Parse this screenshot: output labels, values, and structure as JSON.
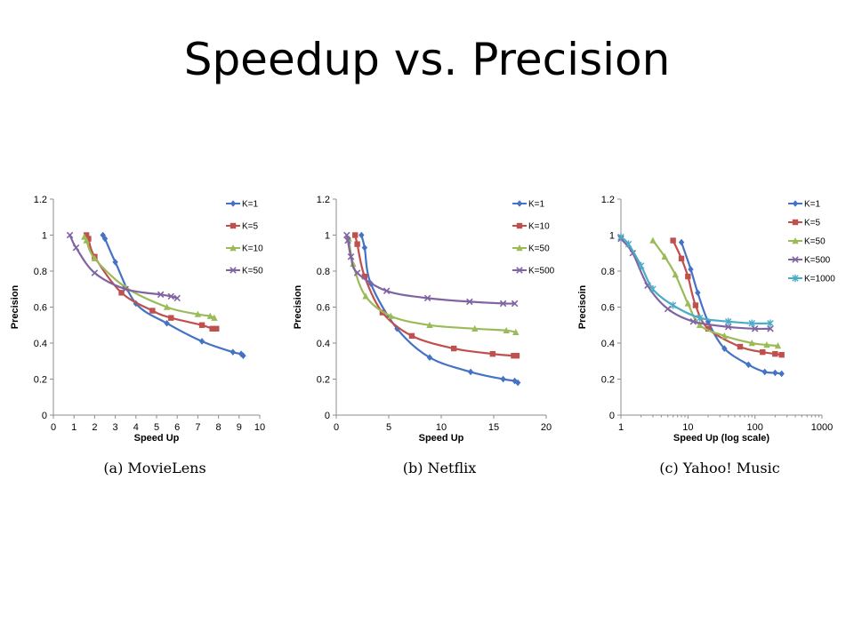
{
  "slide": {
    "title": "Speedup vs. Precision"
  },
  "chart_data": [
    {
      "type": "line",
      "title": "",
      "caption": "(a) MovieLens",
      "xlabel": "Speed Up",
      "ylabel": "Precision",
      "xscale": "linear",
      "xlim": [
        0,
        10
      ],
      "ylim": [
        0,
        1.2
      ],
      "xticks": [
        0,
        1,
        2,
        3,
        4,
        5,
        6,
        7,
        8,
        9,
        10
      ],
      "xtick_labels": [
        "0",
        "1",
        "2",
        "3",
        "4",
        "5",
        "6",
        "7",
        "8",
        "9",
        "10"
      ],
      "yticks": [
        0,
        0.2,
        0.4,
        0.6,
        0.8,
        1,
        1.2
      ],
      "ytick_labels": [
        "0",
        "0.2",
        "0.4",
        "0.6",
        "0.8",
        "1",
        "1.2"
      ],
      "legend_position": "top-right",
      "series": [
        {
          "name": "K=1",
          "color": "#4472C4",
          "marker": "diamond",
          "x": [
            2.4,
            2.5,
            3.0,
            4.0,
            5.5,
            7.2,
            8.7,
            9.1,
            9.2
          ],
          "y": [
            1.0,
            0.98,
            0.85,
            0.62,
            0.51,
            0.41,
            0.35,
            0.34,
            0.33
          ]
        },
        {
          "name": "K=5",
          "color": "#C0504D",
          "marker": "square",
          "x": [
            1.6,
            1.7,
            2.0,
            3.3,
            4.8,
            5.7,
            7.2,
            7.7,
            7.9
          ],
          "y": [
            1.0,
            0.98,
            0.88,
            0.68,
            0.58,
            0.54,
            0.5,
            0.48,
            0.48
          ]
        },
        {
          "name": "K=10",
          "color": "#9BBB59",
          "marker": "triangle",
          "x": [
            1.5,
            1.6,
            2.0,
            3.5,
            5.5,
            7.0,
            7.6,
            7.8
          ],
          "y": [
            0.99,
            0.97,
            0.87,
            0.71,
            0.6,
            0.56,
            0.55,
            0.54
          ]
        },
        {
          "name": "K=50",
          "color": "#8064A2",
          "marker": "x",
          "x": [
            0.8,
            1.1,
            2.0,
            3.5,
            5.2,
            5.7,
            6.0
          ],
          "y": [
            1.0,
            0.93,
            0.79,
            0.7,
            0.67,
            0.66,
            0.65
          ]
        }
      ]
    },
    {
      "type": "line",
      "title": "",
      "caption": "(b) Netflix",
      "xlabel": "Speed Up",
      "ylabel": "Precision",
      "xscale": "linear",
      "xlim": [
        0,
        20
      ],
      "ylim": [
        0,
        1.2
      ],
      "xticks": [
        0,
        5,
        10,
        15,
        20
      ],
      "xtick_labels": [
        "0",
        "5",
        "10",
        "15",
        "20"
      ],
      "yticks": [
        0,
        0.2,
        0.4,
        0.6,
        0.8,
        1,
        1.2
      ],
      "ytick_labels": [
        "0",
        "0.2",
        "0.4",
        "0.6",
        "0.8",
        "1",
        "1.2"
      ],
      "legend_position": "top-right",
      "series": [
        {
          "name": "K=1",
          "color": "#4472C4",
          "marker": "diamond",
          "x": [
            2.4,
            2.7,
            3.3,
            5.8,
            8.9,
            12.8,
            15.9,
            17.0,
            17.3
          ],
          "y": [
            1.0,
            0.93,
            0.73,
            0.48,
            0.32,
            0.24,
            0.2,
            0.19,
            0.18
          ]
        },
        {
          "name": "K=10",
          "color": "#C0504D",
          "marker": "square",
          "x": [
            1.8,
            2.0,
            2.7,
            4.4,
            7.2,
            11.2,
            14.9,
            16.9,
            17.2
          ],
          "y": [
            1.0,
            0.95,
            0.77,
            0.57,
            0.44,
            0.37,
            0.34,
            0.33,
            0.33
          ]
        },
        {
          "name": "K=50",
          "color": "#9BBB59",
          "marker": "triangle",
          "x": [
            1.2,
            1.6,
            2.8,
            5.2,
            8.9,
            13.2,
            16.2,
            17.1
          ],
          "y": [
            0.98,
            0.84,
            0.66,
            0.55,
            0.5,
            0.48,
            0.47,
            0.46
          ]
        },
        {
          "name": "K=500",
          "color": "#8064A2",
          "marker": "x",
          "x": [
            1.0,
            1.1,
            1.4,
            2.0,
            4.8,
            8.7,
            12.7,
            15.9,
            17.0
          ],
          "y": [
            1.0,
            0.97,
            0.88,
            0.79,
            0.69,
            0.65,
            0.63,
            0.62,
            0.62
          ]
        }
      ]
    },
    {
      "type": "line",
      "title": "",
      "caption": "(c) Yahoo! Music",
      "xlabel": "Speed Up (log scale)",
      "ylabel": "Precisoin",
      "xscale": "log",
      "xlim": [
        1,
        1000
      ],
      "ylim": [
        0,
        1.2
      ],
      "xticks": [
        1,
        10,
        100,
        1000
      ],
      "xtick_labels": [
        "1",
        "10",
        "100",
        "1000"
      ],
      "yticks": [
        0,
        0.2,
        0.4,
        0.6,
        0.8,
        1,
        1.2
      ],
      "ytick_labels": [
        "0",
        "0.2",
        "0.4",
        "0.6",
        "0.8",
        "1",
        "1.2"
      ],
      "legend_position": "top-right",
      "series": [
        {
          "name": "K=1",
          "color": "#4472C4",
          "marker": "diamond",
          "x": [
            8,
            11,
            14,
            20,
            35,
            80,
            140,
            200,
            250
          ],
          "y": [
            0.96,
            0.81,
            0.68,
            0.52,
            0.37,
            0.28,
            0.24,
            0.235,
            0.23
          ]
        },
        {
          "name": "K=5",
          "color": "#C0504D",
          "marker": "square",
          "x": [
            6,
            8,
            10,
            13,
            20,
            60,
            130,
            200,
            250
          ],
          "y": [
            0.97,
            0.87,
            0.77,
            0.61,
            0.48,
            0.38,
            0.35,
            0.34,
            0.335
          ]
        },
        {
          "name": "K=50",
          "color": "#9BBB59",
          "marker": "triangle",
          "x": [
            3,
            4.5,
            6.5,
            10,
            15,
            35,
            90,
            150,
            220
          ],
          "y": [
            0.97,
            0.88,
            0.78,
            0.62,
            0.5,
            0.44,
            0.4,
            0.39,
            0.385
          ]
        },
        {
          "name": "K=500",
          "color": "#8064A2",
          "marker": "x",
          "x": [
            1,
            1.5,
            2.5,
            5,
            12,
            40,
            100,
            170
          ],
          "y": [
            0.98,
            0.9,
            0.72,
            0.59,
            0.52,
            0.49,
            0.48,
            0.48
          ]
        },
        {
          "name": "K=1000",
          "color": "#4BACC6",
          "marker": "star",
          "x": [
            1,
            1.3,
            2,
            3,
            6,
            15,
            40,
            90,
            170
          ],
          "y": [
            0.99,
            0.95,
            0.83,
            0.7,
            0.61,
            0.54,
            0.52,
            0.51,
            0.51
          ]
        }
      ]
    }
  ]
}
